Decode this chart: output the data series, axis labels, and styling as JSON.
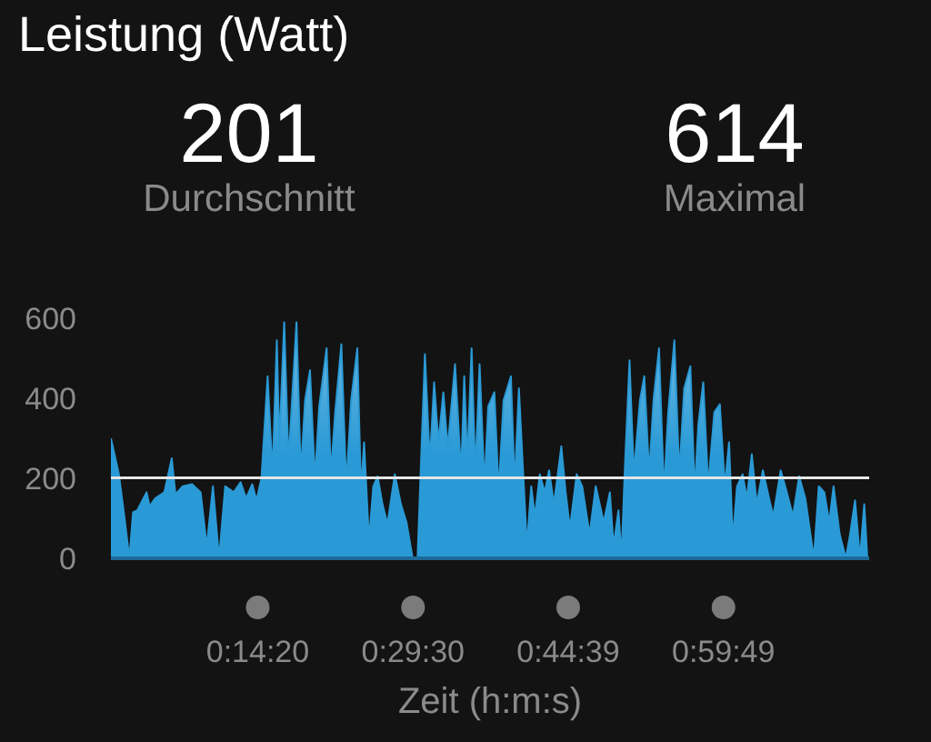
{
  "chart_data": {
    "type": "area",
    "title": "Leistung (Watt)",
    "xlabel": "Zeit (h:m:s)",
    "annotations": [
      "201",
      "Durchschnitt",
      "614",
      "Maximal"
    ],
    "x": [
      0,
      0.013,
      0.023,
      0.03,
      0.036,
      0.043,
      0.058,
      0.063,
      0.072,
      0.087,
      0.099,
      0.105,
      0.117,
      0.132,
      0.146,
      0.156,
      0.166,
      0.176,
      0.186,
      0.2,
      0.211,
      0.22,
      0.23,
      0.237,
      0.245,
      0.255,
      0.263,
      0.27,
      0.274,
      0.282,
      0.289,
      0.302,
      0.309,
      0.316,
      0.324,
      0.332,
      0.339,
      0.351,
      0.358,
      0.365,
      0.375,
      0.383,
      0.391,
      0.401,
      0.407,
      0.412,
      0.42,
      0.427,
      0.434,
      0.442,
      0.45,
      0.462,
      0.472,
      0.481,
      0.491,
      0.499,
      0.511,
      0.519,
      0.526,
      0.533,
      0.541,
      0.548,
      0.56,
      0.57,
      0.575,
      0.58,
      0.587,
      0.593,
      0.6,
      0.608,
      0.614,
      0.624,
      0.631,
      0.639,
      0.651,
      0.657,
      0.664,
      0.671,
      0.677,
      0.684,
      0.69,
      0.698,
      0.706,
      0.713,
      0.721,
      0.733,
      0.74,
      0.747,
      0.758,
      0.767,
      0.779,
      0.789,
      0.802,
      0.812,
      0.818,
      0.826,
      0.831,
      0.836,
      0.844,
      0.851,
      0.861,
      0.868,
      0.876,
      0.883,
      0.892,
      0.9,
      0.907,
      0.917,
      0.925,
      0.933,
      0.943,
      0.95,
      0.956,
      0.964,
      0.972,
      0.982,
      0.991,
      0.999,
      1.006,
      1.012,
      1.019,
      1.028,
      1.035,
      1.043,
      1.051,
      1.061,
      1.071,
      1.078,
      1.09,
      1.1,
      1.11,
      1.12,
      1.13,
      1.144,
      1.152,
      1.161,
      1.169,
      1.176,
      1.186,
      1.196,
      1.203,
      1.211,
      1.219,
      1.226,
      1.231
    ],
    "values": [
      300,
      210,
      90,
      0,
      115,
      120,
      165,
      130,
      150,
      165,
      250,
      160,
      180,
      185,
      165,
      30,
      180,
      0,
      180,
      165,
      190,
      150,
      185,
      145,
      200,
      455,
      210,
      545,
      285,
      590,
      240,
      590,
      210,
      395,
      470,
      195,
      380,
      525,
      210,
      365,
      535,
      180,
      395,
      525,
      165,
      290,
      45,
      180,
      205,
      135,
      85,
      210,
      135,
      90,
      0,
      0,
      510,
      240,
      440,
      290,
      415,
      275,
      485,
      210,
      455,
      240,
      525,
      210,
      485,
      180,
      380,
      415,
      165,
      395,
      455,
      180,
      425,
      210,
      30,
      180,
      105,
      210,
      165,
      220,
      135,
      280,
      165,
      75,
      210,
      180,
      60,
      180,
      90,
      165,
      30,
      120,
      0,
      210,
      495,
      210,
      395,
      455,
      210,
      395,
      525,
      165,
      365,
      545,
      210,
      425,
      480,
      165,
      335,
      440,
      180,
      365,
      385,
      180,
      290,
      45,
      180,
      210,
      150,
      260,
      135,
      220,
      150,
      105,
      220,
      165,
      105,
      205,
      150,
      0,
      180,
      165,
      90,
      180,
      60,
      0,
      60,
      145,
      0,
      135,
      0
    ],
    "color": "#2a9ad6",
    "xlim": [
      0,
      1.234
    ],
    "xticks": [
      {
        "value": 0.2389,
        "label": "0:14:20"
      },
      {
        "value": 0.4917,
        "label": "0:29:30"
      },
      {
        "value": 0.7442,
        "label": "0:44:39"
      },
      {
        "value": 0.9969,
        "label": "0:59:49"
      }
    ],
    "ylim": [
      0,
      600
    ],
    "yticks": [
      0,
      200,
      400,
      600
    ],
    "ref_lines": [
      {
        "axis": "y",
        "value": 201,
        "color": "#e6e6e6"
      }
    ]
  }
}
